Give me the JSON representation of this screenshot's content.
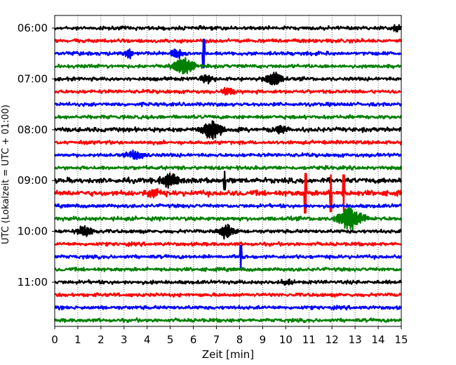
{
  "chart_data": {
    "type": "line",
    "title": "",
    "xlabel": "Zeit  [min]",
    "ylabel": "UTC (Lokalzeit = UTC + 01:00)",
    "xlim": [
      0,
      15
    ],
    "x_ticks": [
      "0",
      "1",
      "2",
      "3",
      "4",
      "5",
      "6",
      "7",
      "8",
      "9",
      "10",
      "11",
      "12",
      "13",
      "14",
      "15"
    ],
    "y_ticks": [
      {
        "label": "06:00",
        "row": 0
      },
      {
        "label": "07:00",
        "row": 4
      },
      {
        "label": "08:00",
        "row": 8
      },
      {
        "label": "09:00",
        "row": 12
      },
      {
        "label": "10:00",
        "row": 16
      },
      {
        "label": "11:00",
        "row": 20
      }
    ],
    "grid_x": true,
    "row_minutes": 15,
    "colors": [
      "#000000",
      "#ff0000",
      "#0000ff",
      "#008000"
    ],
    "rows": [
      {
        "start": "06:00",
        "color": "#000000",
        "noise": 1.0,
        "events": [
          {
            "t": 14.8,
            "amp": 5,
            "dur": 0.4
          }
        ]
      },
      {
        "start": "06:15",
        "color": "#ff0000",
        "noise": 1.0,
        "events": []
      },
      {
        "start": "06:30",
        "color": "#0000ff",
        "noise": 1.0,
        "events": [
          {
            "t": 3.2,
            "amp": 6,
            "dur": 0.4
          },
          {
            "t": 5.3,
            "amp": 6,
            "dur": 0.5
          },
          {
            "t": 6.45,
            "amp": 20,
            "dur": 0.1
          }
        ]
      },
      {
        "start": "06:45",
        "color": "#008000",
        "noise": 1.0,
        "events": [
          {
            "t": 5.6,
            "amp": 12,
            "dur": 0.8
          }
        ]
      },
      {
        "start": "07:00",
        "color": "#000000",
        "noise": 1.0,
        "events": [
          {
            "t": 6.6,
            "amp": 6,
            "dur": 0.5
          },
          {
            "t": 9.5,
            "amp": 10,
            "dur": 0.6
          }
        ]
      },
      {
        "start": "07:15",
        "color": "#ff0000",
        "noise": 1.0,
        "events": [
          {
            "t": 7.5,
            "amp": 5,
            "dur": 0.5
          }
        ]
      },
      {
        "start": "07:30",
        "color": "#0000ff",
        "noise": 1.0,
        "events": []
      },
      {
        "start": "07:45",
        "color": "#008000",
        "noise": 1.0,
        "events": []
      },
      {
        "start": "08:00",
        "color": "#000000",
        "noise": 1.2,
        "events": [
          {
            "t": 6.8,
            "amp": 13,
            "dur": 0.8
          },
          {
            "t": 9.7,
            "amp": 5,
            "dur": 0.5
          }
        ]
      },
      {
        "start": "08:15",
        "color": "#ff0000",
        "noise": 1.0,
        "events": []
      },
      {
        "start": "08:30",
        "color": "#0000ff",
        "noise": 1.0,
        "events": [
          {
            "t": 3.5,
            "amp": 6,
            "dur": 0.6
          }
        ]
      },
      {
        "start": "08:45",
        "color": "#008000",
        "noise": 1.0,
        "events": []
      },
      {
        "start": "09:00",
        "color": "#000000",
        "noise": 1.4,
        "events": [
          {
            "t": 5.0,
            "amp": 10,
            "dur": 0.7
          },
          {
            "t": 7.35,
            "amp": 13,
            "dur": 0.1
          }
        ]
      },
      {
        "start": "09:15",
        "color": "#ff0000",
        "noise": 1.5,
        "events": [
          {
            "t": 4.3,
            "amp": 5,
            "dur": 0.6
          },
          {
            "t": 10.85,
            "amp": 28,
            "dur": 0.1
          },
          {
            "t": 11.95,
            "amp": 26,
            "dur": 0.1
          },
          {
            "t": 12.5,
            "amp": 26,
            "dur": 0.1
          }
        ]
      },
      {
        "start": "09:30",
        "color": "#0000ff",
        "noise": 1.0,
        "events": []
      },
      {
        "start": "09:45",
        "color": "#008000",
        "noise": 1.1,
        "events": [
          {
            "t": 12.8,
            "amp": 16,
            "dur": 0.9
          }
        ]
      },
      {
        "start": "10:00",
        "color": "#000000",
        "noise": 1.0,
        "events": [
          {
            "t": 1.3,
            "amp": 7,
            "dur": 0.6
          },
          {
            "t": 7.4,
            "amp": 9,
            "dur": 0.6
          }
        ]
      },
      {
        "start": "10:15",
        "color": "#ff0000",
        "noise": 1.0,
        "events": []
      },
      {
        "start": "10:30",
        "color": "#0000ff",
        "noise": 1.0,
        "events": [
          {
            "t": 8.05,
            "amp": 16,
            "dur": 0.1
          }
        ]
      },
      {
        "start": "10:45",
        "color": "#008000",
        "noise": 1.0,
        "events": []
      },
      {
        "start": "11:00",
        "color": "#000000",
        "noise": 1.0,
        "events": [
          {
            "t": 10.0,
            "amp": 4,
            "dur": 0.4
          }
        ]
      },
      {
        "start": "11:15",
        "color": "#ff0000",
        "noise": 1.0,
        "events": []
      },
      {
        "start": "11:30",
        "color": "#0000ff",
        "noise": 1.0,
        "events": []
      },
      {
        "start": "11:45",
        "color": "#008000",
        "noise": 1.0,
        "events": []
      }
    ]
  }
}
